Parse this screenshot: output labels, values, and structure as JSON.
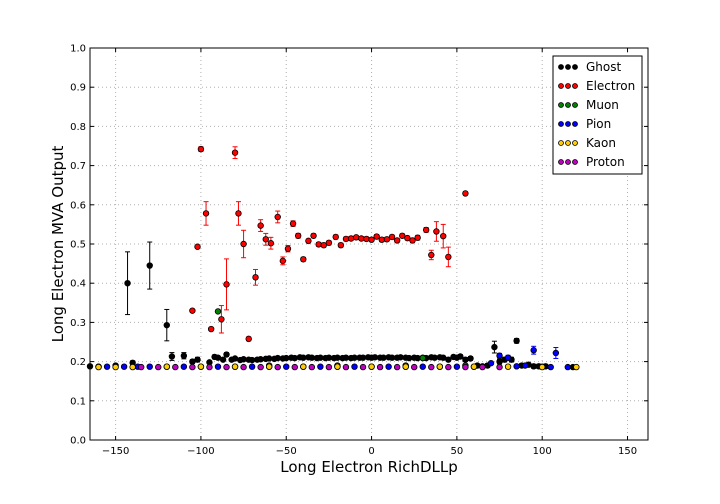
{
  "chart_data": {
    "type": "scatter",
    "title": "",
    "xlabel": "Long Electron RichDLLp",
    "ylabel": "Long Electron MVA Output",
    "xlim": [
      -165,
      162
    ],
    "ylim": [
      0.0,
      1.0
    ],
    "xticks": [
      -150,
      -100,
      -50,
      0,
      50,
      100,
      150
    ],
    "yticks": [
      0.0,
      0.1,
      0.2,
      0.3,
      0.4,
      0.5,
      0.6,
      0.7,
      0.8,
      0.9,
      1.0
    ],
    "xtick_labels": [
      "−150",
      "−100",
      "−50",
      "0",
      "50",
      "100",
      "150"
    ],
    "ytick_labels": [
      "0.0",
      "0.1",
      "0.2",
      "0.3",
      "0.4",
      "0.5",
      "0.6",
      "0.7",
      "0.8",
      "0.9",
      "1.0"
    ],
    "grid": true,
    "legend_position": "top-right",
    "series": [
      {
        "name": "Ghost",
        "color": "#000000",
        "points": [
          [
            -165,
            0.188,
            0.003
          ],
          [
            -160,
            0.187,
            0.003
          ],
          [
            -150,
            0.19,
            0.004
          ],
          [
            -143,
            0.4,
            0.08
          ],
          [
            -140,
            0.197,
            0.005
          ],
          [
            -130,
            0.445,
            0.06
          ],
          [
            -120,
            0.293,
            0.04
          ],
          [
            -117,
            0.213,
            0.01
          ],
          [
            -110,
            0.215,
            0.008
          ],
          [
            -105,
            0.2,
            0.005
          ],
          [
            -102,
            0.205,
            0.006
          ],
          [
            -95,
            0.198,
            0.004
          ],
          [
            -92,
            0.212,
            0.005
          ],
          [
            -90,
            0.21,
            0.004
          ],
          [
            -87,
            0.205,
            0.003
          ],
          [
            -85,
            0.218,
            0.005
          ],
          [
            -82,
            0.205,
            0.003
          ],
          [
            -80,
            0.208,
            0.003
          ],
          [
            -77,
            0.204,
            0.003
          ],
          [
            -75,
            0.206,
            0.003
          ],
          [
            -72,
            0.205,
            0.003
          ],
          [
            -70,
            0.204,
            0.003
          ],
          [
            -67,
            0.205,
            0.003
          ],
          [
            -65,
            0.206,
            0.003
          ],
          [
            -62,
            0.207,
            0.003
          ],
          [
            -60,
            0.208,
            0.003
          ],
          [
            -57,
            0.207,
            0.003
          ],
          [
            -55,
            0.209,
            0.003
          ],
          [
            -52,
            0.208,
            0.003
          ],
          [
            -50,
            0.209,
            0.003
          ],
          [
            -47,
            0.21,
            0.003
          ],
          [
            -45,
            0.209,
            0.003
          ],
          [
            -42,
            0.211,
            0.003
          ],
          [
            -40,
            0.21,
            0.003
          ],
          [
            -37,
            0.211,
            0.003
          ],
          [
            -35,
            0.21,
            0.003
          ],
          [
            -32,
            0.209,
            0.003
          ],
          [
            -30,
            0.21,
            0.003
          ],
          [
            -27,
            0.209,
            0.003
          ],
          [
            -25,
            0.21,
            0.003
          ],
          [
            -22,
            0.209,
            0.003
          ],
          [
            -20,
            0.21,
            0.003
          ],
          [
            -17,
            0.209,
            0.003
          ],
          [
            -15,
            0.21,
            0.003
          ],
          [
            -12,
            0.209,
            0.003
          ],
          [
            -10,
            0.21,
            0.003
          ],
          [
            -7,
            0.21,
            0.003
          ],
          [
            -5,
            0.21,
            0.003
          ],
          [
            -2,
            0.211,
            0.003
          ],
          [
            0,
            0.21,
            0.003
          ],
          [
            2,
            0.211,
            0.003
          ],
          [
            5,
            0.21,
            0.003
          ],
          [
            7,
            0.21,
            0.003
          ],
          [
            10,
            0.211,
            0.003
          ],
          [
            12,
            0.21,
            0.003
          ],
          [
            15,
            0.21,
            0.003
          ],
          [
            17,
            0.211,
            0.003
          ],
          [
            20,
            0.21,
            0.003
          ],
          [
            22,
            0.209,
            0.003
          ],
          [
            25,
            0.21,
            0.003
          ],
          [
            27,
            0.209,
            0.003
          ],
          [
            30,
            0.21,
            0.003
          ],
          [
            32,
            0.209,
            0.003
          ],
          [
            35,
            0.211,
            0.003
          ],
          [
            37,
            0.21,
            0.003
          ],
          [
            40,
            0.211,
            0.003
          ],
          [
            42,
            0.21,
            0.003
          ],
          [
            45,
            0.205,
            0.004
          ],
          [
            48,
            0.212,
            0.004
          ],
          [
            50,
            0.21,
            0.004
          ],
          [
            52,
            0.213,
            0.005
          ],
          [
            55,
            0.205,
            0.005
          ],
          [
            58,
            0.208,
            0.005
          ],
          [
            62,
            0.19,
            0.004
          ],
          [
            65,
            0.188,
            0.004
          ],
          [
            68,
            0.19,
            0.005
          ],
          [
            72,
            0.237,
            0.015
          ],
          [
            75,
            0.2,
            0.006
          ],
          [
            78,
            0.205,
            0.006
          ],
          [
            82,
            0.205,
            0.006
          ],
          [
            85,
            0.253,
            0.006
          ],
          [
            88,
            0.19,
            0.005
          ],
          [
            92,
            0.192,
            0.005
          ],
          [
            95,
            0.188,
            0.005
          ],
          [
            98,
            0.188,
            0.005
          ],
          [
            102,
            0.188,
            0.005
          ],
          [
            118,
            0.186,
            0.004
          ]
        ]
      },
      {
        "name": "Electron",
        "color": "#ff0000",
        "points": [
          [
            -105,
            0.33,
            0.004
          ],
          [
            -102,
            0.493,
            0.004
          ],
          [
            -100,
            0.742,
            0.006
          ],
          [
            -97,
            0.578,
            0.03
          ],
          [
            -94,
            0.283,
            0.004
          ],
          [
            -88,
            0.308,
            0.035
          ],
          [
            -85,
            0.397,
            0.065
          ],
          [
            -80,
            0.733,
            0.015
          ],
          [
            -78,
            0.578,
            0.03
          ],
          [
            -75,
            0.5,
            0.035
          ],
          [
            -72,
            0.258,
            0.005
          ],
          [
            -68,
            0.415,
            0.02
          ],
          [
            -65,
            0.547,
            0.015
          ],
          [
            -62,
            0.512,
            0.015
          ],
          [
            -59,
            0.502,
            0.015
          ],
          [
            -55,
            0.569,
            0.015
          ],
          [
            -52,
            0.457,
            0.01
          ],
          [
            -49,
            0.488,
            0.008
          ],
          [
            -46,
            0.552,
            0.007
          ],
          [
            -43,
            0.521,
            0.006
          ],
          [
            -40,
            0.461,
            0.005
          ],
          [
            -37,
            0.508,
            0.005
          ],
          [
            -34,
            0.521,
            0.005
          ],
          [
            -31,
            0.499,
            0.005
          ],
          [
            -28,
            0.497,
            0.005
          ],
          [
            -25,
            0.503,
            0.005
          ],
          [
            -21,
            0.518,
            0.005
          ],
          [
            -18,
            0.497,
            0.005
          ],
          [
            -15,
            0.513,
            0.005
          ],
          [
            -12,
            0.514,
            0.005
          ],
          [
            -9,
            0.517,
            0.005
          ],
          [
            -6,
            0.514,
            0.005
          ],
          [
            -3,
            0.513,
            0.005
          ],
          [
            0,
            0.511,
            0.005
          ],
          [
            3,
            0.519,
            0.005
          ],
          [
            6,
            0.511,
            0.005
          ],
          [
            9,
            0.512,
            0.005
          ],
          [
            12,
            0.518,
            0.005
          ],
          [
            15,
            0.509,
            0.005
          ],
          [
            18,
            0.521,
            0.005
          ],
          [
            21,
            0.515,
            0.005
          ],
          [
            24,
            0.509,
            0.005
          ],
          [
            27,
            0.516,
            0.006
          ],
          [
            32,
            0.536,
            0.006
          ],
          [
            35,
            0.472,
            0.012
          ],
          [
            38,
            0.532,
            0.025
          ],
          [
            42,
            0.52,
            0.03
          ],
          [
            45,
            0.467,
            0.025
          ],
          [
            55,
            0.629,
            0.004
          ]
        ]
      },
      {
        "name": "Muon",
        "color": "#008000",
        "points": [
          [
            -90,
            0.328,
            0.004
          ],
          [
            -60,
            0.19,
            0.003
          ],
          [
            -20,
            0.19,
            0.003
          ],
          [
            20,
            0.19,
            0.003
          ],
          [
            30,
            0.209,
            0.004
          ],
          [
            55,
            0.19,
            0.003
          ]
        ]
      },
      {
        "name": "Pion",
        "color": "#0000ff",
        "points": [
          [
            -160,
            0.187,
            0.003
          ],
          [
            -155,
            0.187,
            0.003
          ],
          [
            -145,
            0.187,
            0.003
          ],
          [
            -137,
            0.187,
            0.003
          ],
          [
            -130,
            0.187,
            0.003
          ],
          [
            -120,
            0.187,
            0.003
          ],
          [
            -110,
            0.187,
            0.003
          ],
          [
            -100,
            0.187,
            0.003
          ],
          [
            -90,
            0.187,
            0.003
          ],
          [
            -80,
            0.187,
            0.003
          ],
          [
            -70,
            0.187,
            0.003
          ],
          [
            -60,
            0.187,
            0.003
          ],
          [
            -50,
            0.187,
            0.003
          ],
          [
            -40,
            0.187,
            0.003
          ],
          [
            -30,
            0.187,
            0.003
          ],
          [
            -20,
            0.187,
            0.003
          ],
          [
            -10,
            0.187,
            0.003
          ],
          [
            0,
            0.187,
            0.003
          ],
          [
            10,
            0.187,
            0.003
          ],
          [
            20,
            0.187,
            0.003
          ],
          [
            30,
            0.187,
            0.003
          ],
          [
            40,
            0.187,
            0.003
          ],
          [
            50,
            0.187,
            0.003
          ],
          [
            60,
            0.187,
            0.003
          ],
          [
            70,
            0.196,
            0.004
          ],
          [
            75,
            0.215,
            0.006
          ],
          [
            80,
            0.21,
            0.006
          ],
          [
            85,
            0.188,
            0.004
          ],
          [
            90,
            0.19,
            0.004
          ],
          [
            95,
            0.229,
            0.01
          ],
          [
            100,
            0.187,
            0.004
          ],
          [
            105,
            0.186,
            0.004
          ],
          [
            108,
            0.222,
            0.014
          ],
          [
            115,
            0.186,
            0.004
          ]
        ]
      },
      {
        "name": "Kaon",
        "color": "#ffcc00",
        "points": [
          [
            -160,
            0.186,
            0.003
          ],
          [
            -150,
            0.186,
            0.003
          ],
          [
            -140,
            0.186,
            0.003
          ],
          [
            -120,
            0.187,
            0.003
          ],
          [
            -100,
            0.187,
            0.003
          ],
          [
            -80,
            0.187,
            0.003
          ],
          [
            -60,
            0.187,
            0.003
          ],
          [
            -40,
            0.187,
            0.003
          ],
          [
            -20,
            0.187,
            0.003
          ],
          [
            0,
            0.187,
            0.003
          ],
          [
            20,
            0.187,
            0.003
          ],
          [
            40,
            0.187,
            0.003
          ],
          [
            60,
            0.187,
            0.003
          ],
          [
            80,
            0.187,
            0.003
          ],
          [
            100,
            0.186,
            0.003
          ],
          [
            120,
            0.186,
            0.003
          ]
        ]
      },
      {
        "name": "Proton",
        "color": "#bf00bf",
        "points": [
          [
            -135,
            0.186,
            0.003
          ],
          [
            -125,
            0.186,
            0.003
          ],
          [
            -115,
            0.186,
            0.003
          ],
          [
            -105,
            0.186,
            0.003
          ],
          [
            -95,
            0.186,
            0.003
          ],
          [
            -85,
            0.186,
            0.003
          ],
          [
            -75,
            0.186,
            0.003
          ],
          [
            -65,
            0.186,
            0.003
          ],
          [
            -55,
            0.186,
            0.003
          ],
          [
            -45,
            0.186,
            0.003
          ],
          [
            -35,
            0.186,
            0.003
          ],
          [
            -25,
            0.186,
            0.003
          ],
          [
            -15,
            0.186,
            0.003
          ],
          [
            -5,
            0.186,
            0.003
          ],
          [
            5,
            0.186,
            0.003
          ],
          [
            15,
            0.186,
            0.003
          ],
          [
            25,
            0.186,
            0.003
          ],
          [
            35,
            0.186,
            0.003
          ],
          [
            45,
            0.186,
            0.003
          ],
          [
            55,
            0.186,
            0.003
          ],
          [
            65,
            0.186,
            0.003
          ],
          [
            75,
            0.186,
            0.003
          ]
        ]
      }
    ]
  }
}
